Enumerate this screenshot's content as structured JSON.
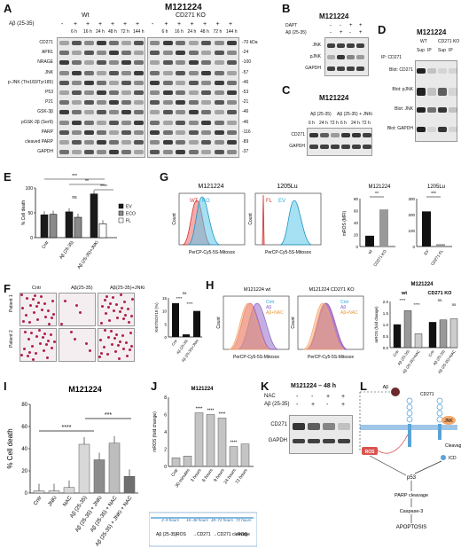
{
  "panel_labels": [
    "A",
    "B",
    "C",
    "D",
    "E",
    "F",
    "G",
    "H",
    "I",
    "J",
    "K",
    "L"
  ],
  "panelA": {
    "title": "M121224",
    "groups": [
      "Wt",
      "CD271 KO"
    ],
    "treatment_label": "Aβ (25-35)",
    "treatment_signs": [
      "-",
      "+",
      "+",
      "+",
      "+",
      "+",
      "+",
      "-",
      "+",
      "+",
      "+",
      "+",
      "+",
      "+"
    ],
    "times": [
      "6 h",
      "16 h",
      "24 h",
      "48 h",
      "72 h",
      "144 h"
    ],
    "rows": [
      "CD271",
      "APR1",
      "NRAGE",
      "JNK",
      "p-JNK (Thr183/Tyr185)",
      "P53",
      "P21",
      "GSK-3β",
      "pGSK-3β (Ser9)",
      "PARP",
      "cleaved PARP",
      "GAPDH"
    ],
    "kda": [
      "-70 kDa",
      "-24",
      "-100",
      "-57",
      "-46",
      "-53",
      "-21",
      "-46",
      "-46",
      "-116",
      "-89",
      "-37"
    ]
  },
  "panelB": {
    "title": "M121224",
    "conditions": [
      {
        "label": "DAPT",
        "signs": [
          "-",
          "-",
          "+",
          "+"
        ]
      },
      {
        "label": "Aβ (25-35)",
        "signs": [
          "-",
          "+",
          "-",
          "+"
        ]
      }
    ],
    "rows": [
      "JNK",
      "pJNK",
      "GAPDH"
    ]
  },
  "panelC": {
    "title": "M121224",
    "groups": [
      "Aβ (25-35)",
      "Aβ (25-35) + JNKi"
    ],
    "times": [
      "6 h",
      "24 h",
      "72 h",
      "6 h",
      "24 h",
      "72 h"
    ],
    "rows": [
      "CD271",
      "GAPDH"
    ]
  },
  "panelD": {
    "title": "M121224",
    "groups": [
      "WT",
      "CD271 KO"
    ],
    "lanes": [
      "Sup",
      "IP",
      "Sup",
      "IP"
    ],
    "ip_label": "IP: CD271",
    "rows": [
      "Blot: CD271",
      "Blot: pJNK",
      "Blot: JNK",
      "Blot: GAPDH"
    ]
  },
  "panelE": {
    "ylabel": "% Cell death",
    "legend": [
      "EV",
      "ECO",
      "FL"
    ],
    "significance": [
      "***",
      "**",
      "****",
      "ns"
    ],
    "chart_data": {
      "type": "bar",
      "categories": [
        "Cntr",
        "Aβ (25-35)",
        "Aβ (25-35)+JNKi"
      ],
      "series": [
        {
          "name": "EV",
          "values": [
            46,
            52,
            88
          ]
        },
        {
          "name": "ECO",
          "values": [
            47,
            41,
            null
          ]
        },
        {
          "name": "FL",
          "values": [
            null,
            null,
            28
          ]
        }
      ],
      "ylim": [
        0,
        100
      ],
      "yticks": [
        0,
        50,
        100
      ],
      "colors": {
        "EV": "#1a1a1a",
        "ECO": "#8a8a8a",
        "FL": "#ffffff"
      }
    }
  },
  "panelF": {
    "patients": [
      "Patient 1",
      "Patient 2"
    ],
    "columns": [
      "Cntr",
      "Aβ(25-35)",
      "Aβ(25-35)+JNKi"
    ],
    "ylabel": "KI67/SOX10 (%)",
    "significance": [
      "****",
      "ns",
      "****"
    ],
    "chart_data": {
      "type": "bar",
      "categories": [
        "Cntr",
        "Aβ (25-35)",
        "Aβ (25-35)+JNKi"
      ],
      "values": [
        13,
        1,
        10
      ],
      "ylim": [
        0,
        15
      ],
      "yticks": [
        0,
        5,
        10,
        15
      ],
      "colors": {
        "bar": "#111111"
      }
    }
  },
  "panelG": {
    "histograms": [
      {
        "title": "M121224",
        "labels": [
          "WT",
          "KO"
        ],
        "xlabel": "PerCP-Cy5-5S-Mitosox",
        "ylabel": "Count"
      },
      {
        "title": "1205Lu",
        "labels": [
          "FL",
          "EV"
        ],
        "xlabel": "PerCP-Cy5-5S-Mitosox",
        "ylabel": "Count"
      }
    ],
    "bars": [
      {
        "title": "M121224",
        "ylabel": "mROS (MFI)",
        "significance": "**",
        "chart_data": {
          "type": "bar",
          "categories": [
            "wt",
            "CD271 KO"
          ],
          "values": [
            18,
            62
          ],
          "ylim": [
            0,
            80
          ],
          "yticks": [
            0,
            20,
            40,
            60,
            80
          ]
        }
      },
      {
        "title": "1205Lu",
        "ylabel": "",
        "significance": "***",
        "chart_data": {
          "type": "bar",
          "categories": [
            "EV",
            "CD271 FL"
          ],
          "values": [
            220,
            15
          ],
          "ylim": [
            0,
            300
          ],
          "yticks": [
            0,
            100,
            200,
            300
          ]
        }
      }
    ]
  },
  "panelH": {
    "histograms": [
      {
        "title": "M121224 wt",
        "legend": [
          "Cntr",
          "Aβ",
          "Aβ+NAC"
        ],
        "xlabel": "PerCP-Cy5-5S-Mitosox",
        "ylabel": "Count"
      },
      {
        "title": "M121224 CD271 KO",
        "legend": [
          "Cntr",
          "Aβ",
          "Aβ+NAC"
        ],
        "xlabel": "PerCP-Cy5-5S-Mitosox",
        "ylabel": "Count"
      }
    ],
    "bar_title": "M121224",
    "groups": [
      "wt",
      "CD271 KO"
    ],
    "ylabel": "mROS (fold change)",
    "significance": [
      "****",
      "****",
      "ns",
      "ns"
    ],
    "chart_data": {
      "type": "bar",
      "categories": [
        "Cntr",
        "Aβ (25-35)",
        "Aβ (25-35)+NAC",
        "Cntr",
        "Aβ (25-35)",
        "Aβ (25-35)+NAC"
      ],
      "values": [
        1.0,
        1.6,
        0.6,
        1.1,
        1.2,
        1.25
      ],
      "ylim": [
        0,
        2.0
      ],
      "yticks": [
        0.0,
        0.5,
        1.0,
        1.5,
        2.0
      ]
    }
  },
  "panelI": {
    "title": "M121224",
    "ylabel": "% Cell death",
    "significance": [
      "****",
      "***"
    ],
    "chart_data": {
      "type": "bar",
      "categories": [
        "Cntr",
        "JNKi",
        "NAC",
        "Aβ (25-35)",
        "Aβ (25-35) + JNKi",
        "Aβ (25-35) + NAC",
        "Aβ (25-35) + JNKi + NAC"
      ],
      "values": [
        2,
        2,
        5,
        44,
        30,
        45,
        15
      ],
      "ylim": [
        0,
        80
      ],
      "yticks": [
        0,
        20,
        40,
        60,
        80
      ]
    }
  },
  "panelJ": {
    "title": "M121224",
    "ylabel": "mROS (fold change)",
    "significance": [
      "****",
      "****",
      "****",
      "****"
    ],
    "chart_data": {
      "type": "bar",
      "categories": [
        "Cntr",
        "30 minutes",
        "3 hours",
        "6 hours",
        "9 hours",
        "24 hours",
        "72 hours"
      ],
      "values": [
        1.0,
        1.2,
        6.2,
        6.0,
        5.6,
        2.3,
        2.6
      ],
      "ylim": [
        0,
        8
      ],
      "yticks": [
        0,
        2,
        4,
        6,
        8
      ]
    },
    "timeline": {
      "ranges": [
        "3–9 hours",
        "16–48 hours",
        "48–72 hours",
        "72 hours"
      ],
      "steps": [
        "Aβ (25-35)",
        "ROS",
        "CD271",
        "CD271 cleavage",
        "ROS"
      ]
    }
  },
  "panelK": {
    "title": "M121224 – 48 h",
    "conditions": [
      {
        "label": "NAC",
        "signs": [
          "-",
          "-",
          "+",
          "+"
        ]
      },
      {
        "label": "Aβ (25-35)",
        "signs": [
          "-",
          "+",
          "-",
          "+"
        ]
      }
    ],
    "rows": [
      "CD271",
      "GAPDH"
    ]
  },
  "panelL": {
    "labels": [
      "Aβ",
      "CD271",
      "ROS",
      "JNK",
      "Cleavage",
      "ICD",
      "p53",
      "PARP cleavage",
      "Caspase-3",
      "APOPTOSIS"
    ]
  }
}
